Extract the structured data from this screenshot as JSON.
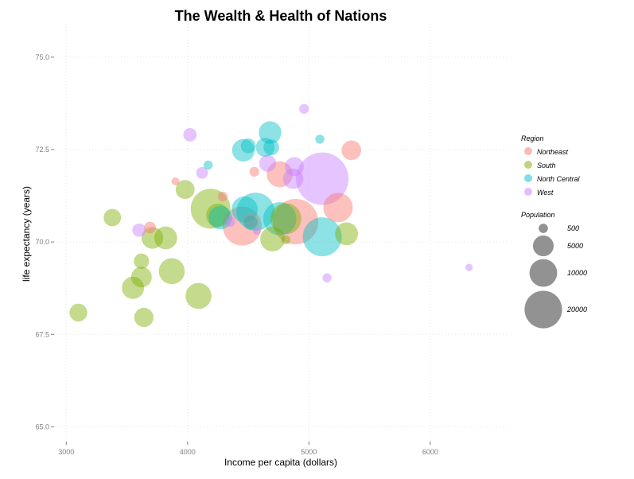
{
  "chart_data": {
    "type": "scatter",
    "title": "The Wealth & Health of Nations",
    "xlabel": "Income per capita (dollars)",
    "ylabel": "life expectancy (years)",
    "xlim": [
      2900,
      6650
    ],
    "ylim": [
      64.6,
      75.9
    ],
    "x_ticks": [
      3000,
      4000,
      5000,
      6000
    ],
    "y_ticks": [
      65.0,
      67.5,
      70.0,
      72.5,
      75.0
    ],
    "y_tick_labels": [
      "65.0",
      "67.5",
      "70.0",
      "72.5",
      "75.0"
    ],
    "grid": true,
    "legend_position": "right",
    "legend_title_color": "Region",
    "legend_title_size": "Population",
    "size_legend": [
      {
        "label": "500",
        "value": 500
      },
      {
        "label": "5000",
        "value": 5000
      },
      {
        "label": "10000",
        "value": 10000
      },
      {
        "label": "20000",
        "value": 20000
      }
    ],
    "series": [
      {
        "name": "Northeast",
        "color": "#f8766d",
        "points": [
          {
            "x": 5350,
            "y": 72.48,
            "size": 2800
          },
          {
            "x": 4550,
            "y": 71.9,
            "size": 700
          },
          {
            "x": 4760,
            "y": 71.83,
            "size": 4900
          },
          {
            "x": 3900,
            "y": 71.64,
            "size": 450
          },
          {
            "x": 4290,
            "y": 71.23,
            "size": 700
          },
          {
            "x": 5240,
            "y": 70.93,
            "size": 6300
          },
          {
            "x": 4890,
            "y": 70.55,
            "size": 15000
          },
          {
            "x": 4450,
            "y": 70.43,
            "size": 11000
          },
          {
            "x": 4520,
            "y": 70.56,
            "size": 1400
          },
          {
            "x": 3690,
            "y": 70.39,
            "size": 1000
          }
        ]
      },
      {
        "name": "South",
        "color": "#7cae00",
        "points": [
          {
            "x": 3980,
            "y": 71.42,
            "size": 2600
          },
          {
            "x": 4190,
            "y": 70.9,
            "size": 11500
          },
          {
            "x": 4250,
            "y": 70.72,
            "size": 4000
          },
          {
            "x": 3380,
            "y": 70.66,
            "size": 2200
          },
          {
            "x": 3710,
            "y": 70.11,
            "size": 3400
          },
          {
            "x": 3820,
            "y": 70.11,
            "size": 3800
          },
          {
            "x": 4700,
            "y": 70.08,
            "size": 4400
          },
          {
            "x": 4810,
            "y": 70.06,
            "size": 600
          },
          {
            "x": 5310,
            "y": 70.22,
            "size": 3800
          },
          {
            "x": 3620,
            "y": 69.48,
            "size": 1700
          },
          {
            "x": 3620,
            "y": 69.05,
            "size": 3100
          },
          {
            "x": 3870,
            "y": 69.21,
            "size": 4900
          },
          {
            "x": 3550,
            "y": 68.76,
            "size": 3600
          },
          {
            "x": 4090,
            "y": 68.54,
            "size": 4900
          },
          {
            "x": 3100,
            "y": 68.09,
            "size": 2300
          },
          {
            "x": 3640,
            "y": 67.96,
            "size": 2700
          },
          {
            "x": 4810,
            "y": 70.63,
            "size": 7000
          }
        ]
      },
      {
        "name": "North Central",
        "color": "#00bfc4",
        "points": [
          {
            "x": 4680,
            "y": 72.96,
            "size": 3700
          },
          {
            "x": 5090,
            "y": 72.78,
            "size": 600
          },
          {
            "x": 4500,
            "y": 72.6,
            "size": 1600
          },
          {
            "x": 4640,
            "y": 72.56,
            "size": 2600
          },
          {
            "x": 4690,
            "y": 72.56,
            "size": 1800
          },
          {
            "x": 4460,
            "y": 72.48,
            "size": 3700
          },
          {
            "x": 4170,
            "y": 72.08,
            "size": 600
          },
          {
            "x": 4560,
            "y": 70.82,
            "size": 10500
          },
          {
            "x": 4470,
            "y": 70.88,
            "size": 5000
          },
          {
            "x": 4270,
            "y": 70.66,
            "size": 4000
          },
          {
            "x": 4760,
            "y": 70.63,
            "size": 8000
          },
          {
            "x": 5110,
            "y": 70.14,
            "size": 11000
          },
          {
            "x": 4520,
            "y": 70.52,
            "size": 1400
          }
        ]
      },
      {
        "name": "West",
        "color": "#c77cff",
        "points": [
          {
            "x": 4960,
            "y": 73.6,
            "size": 700
          },
          {
            "x": 4020,
            "y": 72.9,
            "size": 1300
          },
          {
            "x": 4660,
            "y": 72.13,
            "size": 2100
          },
          {
            "x": 4880,
            "y": 72.04,
            "size": 2600
          },
          {
            "x": 4120,
            "y": 71.87,
            "size": 1000
          },
          {
            "x": 4870,
            "y": 71.71,
            "size": 3000
          },
          {
            "x": 5110,
            "y": 71.71,
            "size": 20000
          },
          {
            "x": 4350,
            "y": 70.55,
            "size": 800
          },
          {
            "x": 3600,
            "y": 70.32,
            "size": 1300
          },
          {
            "x": 4570,
            "y": 70.29,
            "size": 400
          },
          {
            "x": 6320,
            "y": 69.31,
            "size": 400
          },
          {
            "x": 5150,
            "y": 69.03,
            "size": 600
          }
        ]
      }
    ]
  }
}
